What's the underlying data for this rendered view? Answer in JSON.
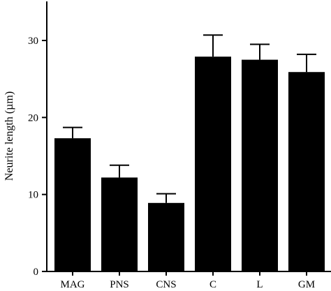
{
  "chart_data": {
    "type": "bar",
    "categories": [
      "MAG",
      "PNS",
      "CNS",
      "C",
      "L",
      "GM"
    ],
    "values": [
      17.3,
      12.2,
      8.9,
      27.9,
      27.5,
      25.9
    ],
    "errors": [
      1.4,
      1.6,
      1.2,
      2.8,
      2.0,
      2.3
    ],
    "ylabel": "Neurite length (µm)",
    "xlabel": "",
    "title": "",
    "ylim": [
      0,
      35
    ],
    "yticks": [
      0,
      10,
      20,
      30
    ],
    "ytick_labels": [
      "0",
      "10",
      "20",
      "30"
    ],
    "bar_color": "#000000",
    "grid": false,
    "legend": "none"
  }
}
